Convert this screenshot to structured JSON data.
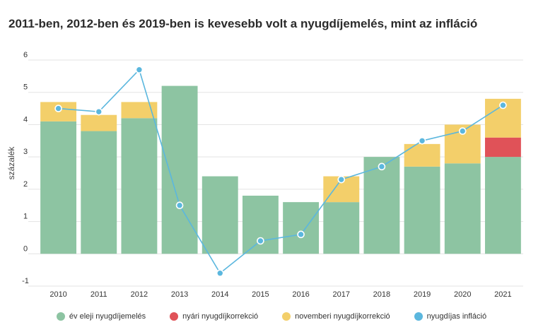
{
  "title": "2011-ben, 2012-ben és 2019-ben is kevesebb volt a nyugdíjemelés, mint az infláció",
  "colors": {
    "ev_eleji": "#8dc4a2",
    "nyari": "#e05258",
    "novemberi": "#f3cf6a",
    "inflacio": "#5bb7de",
    "grid": "#e3e3e3"
  },
  "chart_data": {
    "type": "bar",
    "title": "2011-ben, 2012-ben és 2019-ben is kevesebb volt a nyugdíjemelés, mint az infláció",
    "xlabel": "",
    "ylabel": "százalék",
    "ylim": [
      -1,
      6
    ],
    "yticks": [
      "-1",
      "0",
      "1",
      "2",
      "3",
      "4",
      "5",
      "6"
    ],
    "categories": [
      "2010",
      "2011",
      "2012",
      "2013",
      "2014",
      "2015",
      "2016",
      "2017",
      "2018",
      "2019",
      "2020",
      "2021"
    ],
    "stacked": true,
    "grid": true,
    "legend_position": "bottom",
    "series": [
      {
        "name": "év eleji nyugdíjemelés",
        "kind": "bar",
        "color": "#8dc4a2",
        "values": [
          4.1,
          3.8,
          4.2,
          5.2,
          2.4,
          1.8,
          1.6,
          1.6,
          3.0,
          2.7,
          2.8,
          3.0
        ]
      },
      {
        "name": "nyári nyugdíjkorrekció",
        "kind": "bar",
        "color": "#e05258",
        "values": [
          0,
          0,
          0,
          0,
          0,
          0,
          0,
          0,
          0,
          0,
          0,
          0.6
        ]
      },
      {
        "name": "novemberi nyugdíjkorrekció",
        "kind": "bar",
        "color": "#f3cf6a",
        "values": [
          0.6,
          0.5,
          0.5,
          0,
          0,
          0,
          0,
          0.8,
          0,
          0.7,
          1.2,
          1.2
        ]
      },
      {
        "name": "nyugdíjas infláció",
        "kind": "line",
        "color": "#5bb7de",
        "values": [
          4.5,
          4.4,
          5.7,
          1.5,
          -0.6,
          0.4,
          0.6,
          2.3,
          2.7,
          3.5,
          3.8,
          4.6
        ]
      }
    ]
  }
}
